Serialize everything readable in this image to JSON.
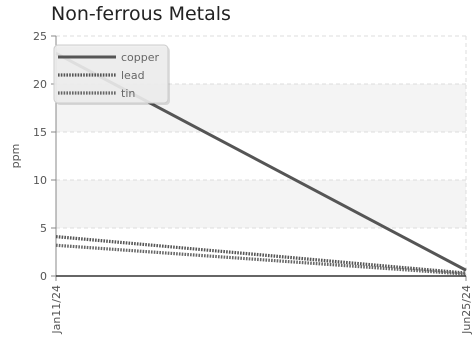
{
  "chart_data": {
    "type": "line",
    "title": "Non-ferrous Metals",
    "xlabel": "",
    "ylabel": "ppm",
    "x": [
      "Jan11/24",
      "Jun25/24"
    ],
    "ylim": [
      0,
      25
    ],
    "yticks": [
      0,
      5,
      10,
      15,
      20,
      25
    ],
    "grid": true,
    "legend_position": "top-left",
    "series": [
      {
        "name": "copper",
        "values": [
          23.2,
          0.6
        ],
        "color": "#555555",
        "style": "solid"
      },
      {
        "name": "lead",
        "values": [
          4.1,
          0.3
        ],
        "color": "#555555",
        "style": "dotted"
      },
      {
        "name": "tin",
        "values": [
          3.2,
          0.2
        ],
        "color": "#666666",
        "style": "dotted"
      }
    ]
  }
}
